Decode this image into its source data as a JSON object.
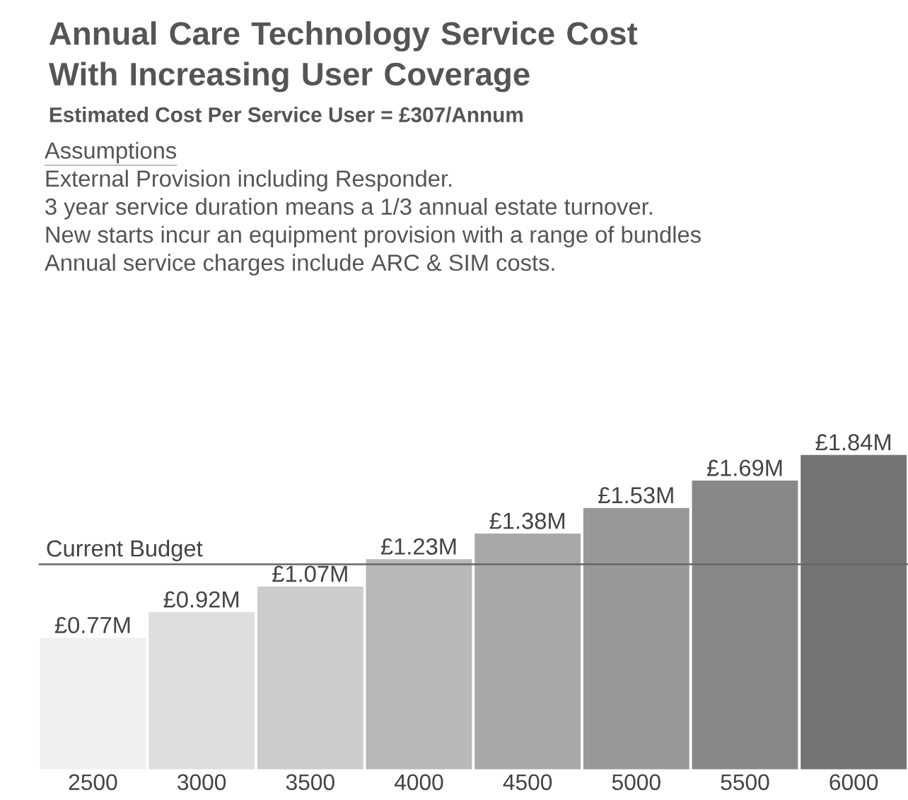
{
  "chart_data": {
    "type": "bar",
    "title": "Annual Care Technology Service Cost With Increasing User Coverage",
    "subtitle": "Estimated Cost Per Service User = £307/Annum",
    "annotations": [
      "Assumptions",
      "External Provision including Responder.",
      "3 year service duration means a 1/3 annual estate turnover.",
      "New starts incur an equipment provision with a range of bundles",
      "Annual service charges include ARC & SIM costs."
    ],
    "categories": [
      "2500",
      "3000",
      "3500",
      "4000",
      "4500",
      "5000",
      "5500",
      "6000"
    ],
    "values": [
      0.77,
      0.92,
      1.07,
      1.23,
      1.38,
      1.53,
      1.69,
      1.84
    ],
    "value_labels": [
      "£0.77M",
      "£0.92M",
      "£1.07M",
      "£1.23M",
      "£1.38M",
      "£1.53M",
      "£1.69M",
      "£1.84M"
    ],
    "colors": [
      "#f0f0f0",
      "#dedede",
      "#cccccc",
      "#b8b8b8",
      "#a8a8a8",
      "#989898",
      "#888888",
      "#747474"
    ],
    "ref_lines": [
      {
        "axis": "y",
        "value": 1.2,
        "label": "Current Budget",
        "color": "#666666"
      }
    ],
    "tick_labels": "x",
    "grid": false
  }
}
